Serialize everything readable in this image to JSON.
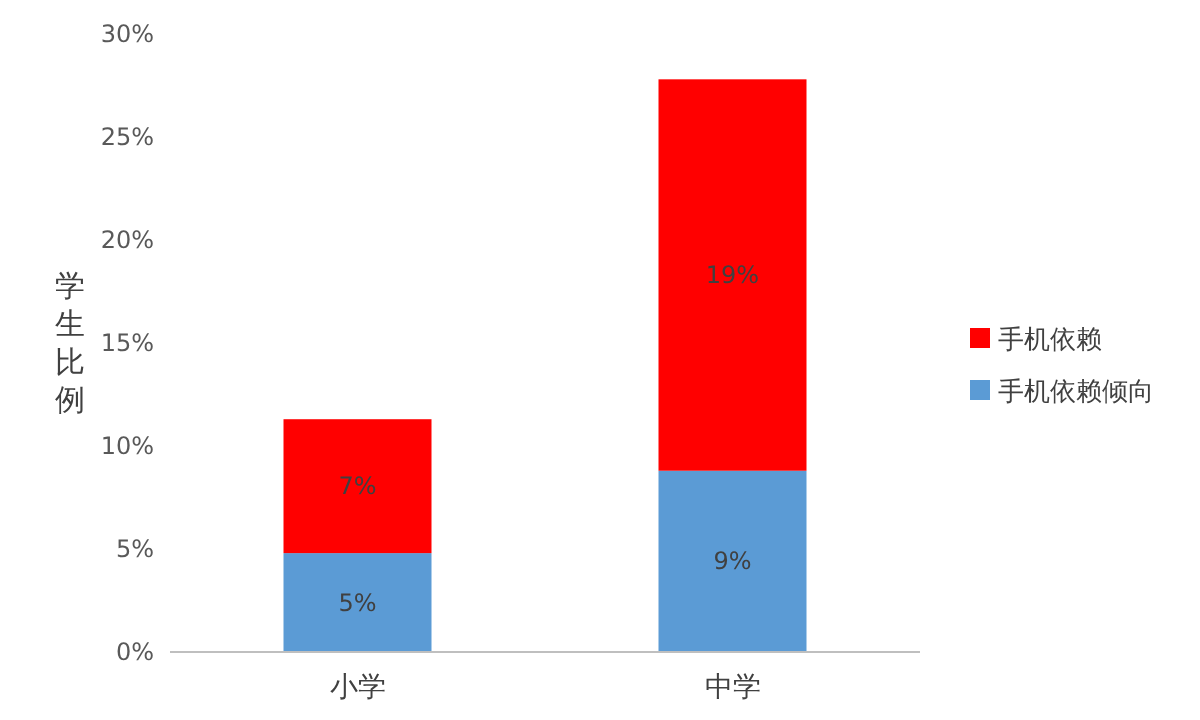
{
  "chart_data": {
    "type": "bar",
    "stacked": true,
    "ylabel": "学生比例",
    "categories": [
      "小学",
      "中学"
    ],
    "series": [
      {
        "name": "手机依赖倾向",
        "color": "#5b9bd5",
        "values": [
          4.8,
          8.8
        ],
        "value_labels": [
          "5%",
          "9%"
        ]
      },
      {
        "name": "手机依赖",
        "color": "#ff0000",
        "values": [
          6.5,
          19.0
        ],
        "value_labels": [
          "7%",
          "19%"
        ]
      }
    ],
    "ylim": [
      0,
      30
    ],
    "yticks": [
      {
        "value": 0,
        "label": "0%"
      },
      {
        "value": 5,
        "label": "5%"
      },
      {
        "value": 10,
        "label": "10%"
      },
      {
        "value": 15,
        "label": "15%"
      },
      {
        "value": 20,
        "label": "20%"
      },
      {
        "value": 25,
        "label": "25%"
      },
      {
        "value": 30,
        "label": "30%"
      }
    ],
    "legend": "right"
  }
}
